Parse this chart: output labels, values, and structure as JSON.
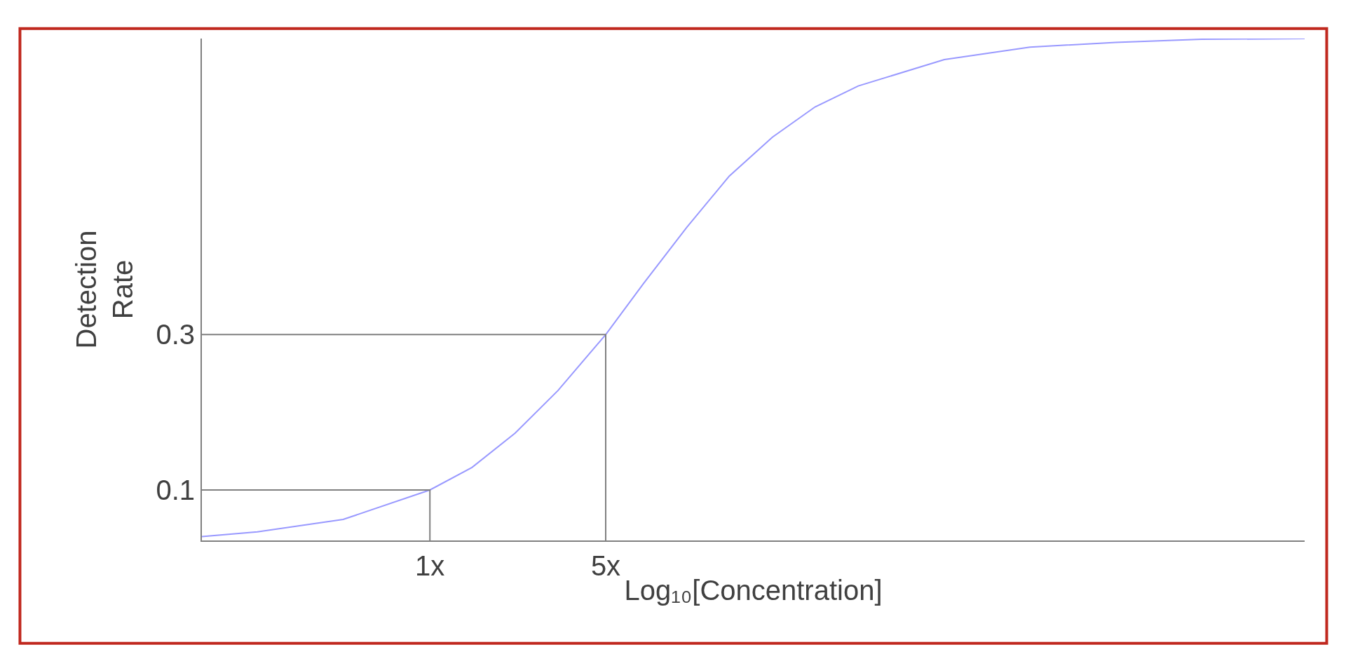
{
  "chart_data": {
    "type": "line",
    "xlabel": "Log₁₀[Concentration]",
    "ylabel": "Detection Rate",
    "log": "x",
    "xlim": [
      0.124,
      3006
    ],
    "xticks": [
      {
        "value": 1,
        "label": "1x"
      },
      {
        "value": 5,
        "label": "5x"
      }
    ],
    "ylim": [
      0.035,
      0.681
    ],
    "yticks": [
      0.1,
      0.3
    ],
    "marker": "none",
    "line_style": "solid",
    "series": [
      {
        "color": "#9999ff",
        "x": [
          0.124,
          0.206,
          0.452,
          1,
          1.47,
          2.18,
          3.23,
          5,
          7.08,
          10.5,
          15.5,
          23.0,
          34.0,
          50.5,
          111,
          243,
          533,
          1170,
          3006
        ],
        "values": [
          0.04,
          0.046,
          0.062,
          0.1,
          0.129,
          0.173,
          0.228,
          0.3,
          0.366,
          0.438,
          0.504,
          0.554,
          0.593,
          0.62,
          0.654,
          0.67,
          0.676,
          0.68,
          0.681
        ]
      },
      {
        "color": "#808080",
        "x": [
          0.124,
          1,
          1
        ],
        "values": [
          0.1,
          0.1,
          0.035
        ]
      },
      {
        "color": "#808080",
        "x": [
          0.124,
          5,
          5
        ],
        "values": [
          0.3,
          0.3,
          0.035
        ]
      }
    ]
  }
}
